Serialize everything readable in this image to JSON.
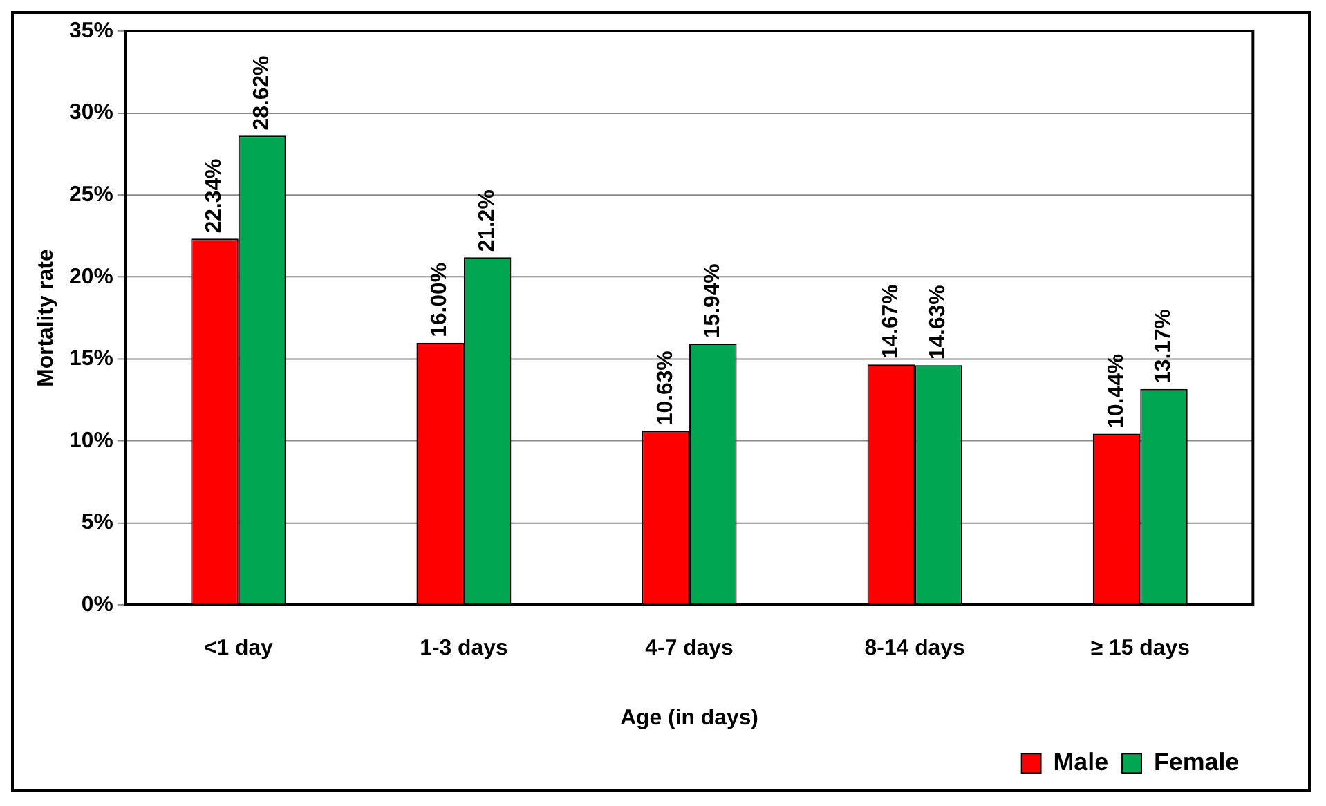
{
  "chart_data": {
    "type": "bar",
    "xlabel": "Age (in days)",
    "ylabel": "Mortality rate",
    "categories": [
      "<1 day",
      "1-3 days",
      "4-7 days",
      "8-14 days",
      "≥ 15 days"
    ],
    "series": [
      {
        "name": "Male",
        "color": "#ff0000",
        "values": [
          22.34,
          16.0,
          10.63,
          14.67,
          10.44
        ],
        "value_labels": [
          "22.34%",
          "16.00%",
          "10.63%",
          "14.67%",
          "10.44%"
        ]
      },
      {
        "name": "Female",
        "color": "#00a651",
        "values": [
          28.62,
          21.2,
          15.94,
          14.63,
          13.17
        ],
        "value_labels": [
          "28.62%",
          "21.2%",
          "15.94%",
          "14.63%",
          "13.17%"
        ]
      }
    ],
    "ylim": [
      0,
      35
    ],
    "yticks": [
      {
        "value": 0,
        "label": "0%"
      },
      {
        "value": 5,
        "label": "5%"
      },
      {
        "value": 10,
        "label": "10%"
      },
      {
        "value": 15,
        "label": "15%"
      },
      {
        "value": 20,
        "label": "20%"
      },
      {
        "value": 25,
        "label": "25%"
      },
      {
        "value": 30,
        "label": "30%"
      },
      {
        "value": 35,
        "label": "35%"
      }
    ],
    "grid": "y",
    "legend": "bottom right"
  }
}
